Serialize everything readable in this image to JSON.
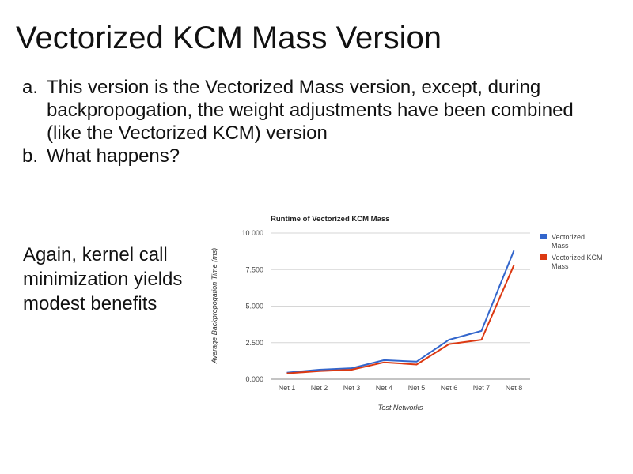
{
  "slide": {
    "title": "Vectorized KCM Mass Version",
    "bullets": [
      {
        "marker": "a.",
        "text": "This version is the Vectorized Mass version, except, during backpropogation, the weight adjustments have been combined (like the Vectorized KCM) version"
      },
      {
        "marker": "b.",
        "text": "What happens?"
      }
    ],
    "side_note": "Again, kernel call minimization yields modest benefits"
  },
  "chart_data": {
    "type": "line",
    "title": "Runtime of Vectorized KCM Mass",
    "xlabel": "Test Networks",
    "ylabel": "Average Backpropogation Time (ms)",
    "categories": [
      "Net 1",
      "Net 2",
      "Net 3",
      "Net 4",
      "Net 5",
      "Net 6",
      "Net 7",
      "Net 8"
    ],
    "ylim": [
      0,
      10000
    ],
    "yticks": [
      0,
      2500,
      5000,
      7500,
      10000
    ],
    "ytick_labels": [
      "0.000",
      "2.500",
      "5.000",
      "7.500",
      "10.000"
    ],
    "grid": true,
    "legend_position": "right",
    "series": [
      {
        "name": "Vectorized Mass",
        "color": "#3366cc",
        "values": [
          450,
          650,
          750,
          1300,
          1200,
          2700,
          3300,
          8800
        ]
      },
      {
        "name": "Vectorized KCM Mass",
        "color": "#dc3912",
        "values": [
          400,
          550,
          650,
          1150,
          1000,
          2400,
          2700,
          7800
        ]
      }
    ]
  }
}
